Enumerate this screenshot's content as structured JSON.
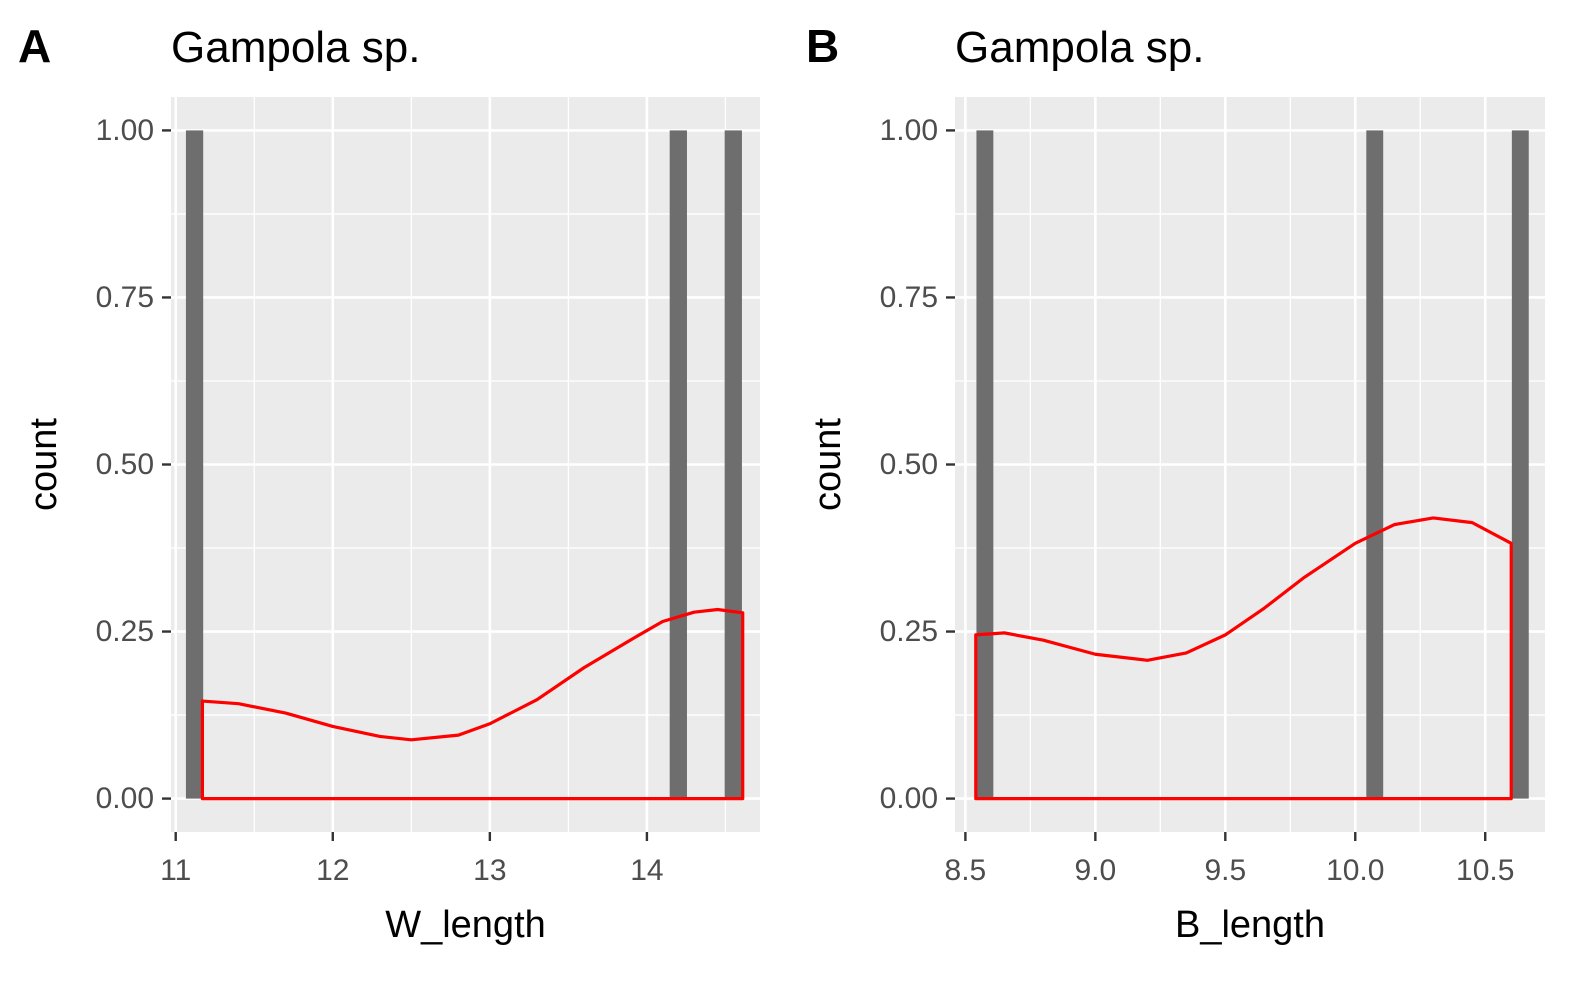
{
  "chart_data": [
    {
      "type": "bar",
      "tag": "A",
      "title": "Gampola sp.",
      "xlabel": "W_length",
      "ylabel": "count",
      "xlim": [
        10.97,
        14.72
      ],
      "ylim": [
        -0.05,
        1.05
      ],
      "x_ticks": [
        11,
        12,
        13,
        14
      ],
      "x_tick_labels": [
        "11",
        "12",
        "13",
        "14"
      ],
      "x_minor_ticks": [
        11.5,
        12.5,
        13.5,
        14.5
      ],
      "y_ticks": [
        0,
        0.25,
        0.5,
        0.75,
        1
      ],
      "y_tick_labels": [
        "0.00",
        "0.25",
        "0.50",
        "0.75",
        "1.00"
      ],
      "grid": true,
      "bar_color": "#6e6e6e",
      "bars": [
        {
          "x": 11.12,
          "count": 1,
          "width": 0.11
        },
        {
          "x": 14.2,
          "count": 1,
          "width": 0.11
        },
        {
          "x": 14.55,
          "count": 1,
          "width": 0.11
        }
      ],
      "density": {
        "name": "density",
        "color": "#ff0000",
        "x": [
          11.17,
          11.4,
          11.7,
          12.0,
          12.3,
          12.5,
          12.8,
          13.0,
          13.3,
          13.6,
          13.9,
          14.1,
          14.3,
          14.45,
          14.61
        ],
        "y": [
          0.146,
          0.142,
          0.128,
          0.108,
          0.093,
          0.088,
          0.095,
          0.112,
          0.148,
          0.196,
          0.238,
          0.265,
          0.279,
          0.283,
          0.278
        ]
      }
    },
    {
      "type": "bar",
      "tag": "B",
      "title": "Gampola sp.",
      "xlabel": "B_length",
      "ylabel": "count",
      "xlim": [
        8.46,
        10.73
      ],
      "ylim": [
        -0.05,
        1.05
      ],
      "x_ticks": [
        8.5,
        9.0,
        9.5,
        10.0,
        10.5
      ],
      "x_tick_labels": [
        "8.5",
        "9.0",
        "9.5",
        "10.0",
        "10.5"
      ],
      "x_minor_ticks": [
        8.75,
        9.25,
        9.75,
        10.25,
        10.75
      ],
      "y_ticks": [
        0,
        0.25,
        0.5,
        0.75,
        1
      ],
      "y_tick_labels": [
        "0.00",
        "0.25",
        "0.50",
        "0.75",
        "1.00"
      ],
      "grid": true,
      "bar_color": "#6e6e6e",
      "bars": [
        {
          "x": 8.575,
          "count": 1,
          "width": 0.065
        },
        {
          "x": 10.075,
          "count": 1,
          "width": 0.065
        },
        {
          "x": 10.635,
          "count": 1,
          "width": 0.065
        }
      ],
      "density": {
        "name": "density",
        "color": "#ff0000",
        "x": [
          8.54,
          8.65,
          8.8,
          9.0,
          9.2,
          9.35,
          9.5,
          9.65,
          9.8,
          10.0,
          10.15,
          10.3,
          10.45,
          10.6
        ],
        "y": [
          0.245,
          0.248,
          0.237,
          0.216,
          0.207,
          0.218,
          0.245,
          0.285,
          0.33,
          0.382,
          0.41,
          0.42,
          0.413,
          0.382
        ]
      }
    }
  ]
}
